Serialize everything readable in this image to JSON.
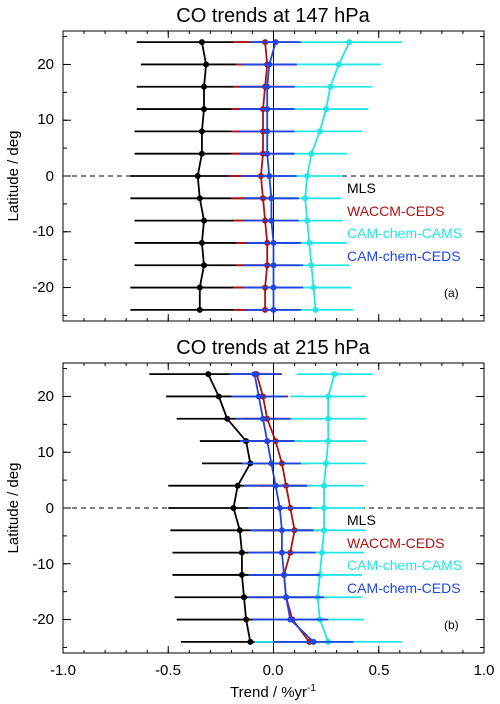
{
  "chart_data": [
    {
      "type": "errorbar-profile",
      "title": "CO trends at 147 hPa",
      "ylabel": "Latitude / deg",
      "xlabel": "",
      "xlim": [
        -1.0,
        1.0
      ],
      "ylim": [
        -26,
        26
      ],
      "yticks": [
        20,
        10,
        0,
        -10,
        -20
      ],
      "yticklabels": [
        "20",
        "10",
        "0",
        "-10",
        "-20"
      ],
      "xticks": [
        -1.0,
        -0.5,
        0.0,
        0.5,
        1.0
      ],
      "zero_line_y": 0,
      "panel_label": "(a)",
      "latitudes": [
        24,
        20,
        16,
        12,
        8,
        4,
        0,
        -4,
        -8,
        -12,
        -16,
        -20,
        -24
      ],
      "series": [
        {
          "name": "MLS",
          "color": "#000000",
          "values": [
            -0.34,
            -0.32,
            -0.33,
            -0.33,
            -0.34,
            -0.34,
            -0.36,
            -0.35,
            -0.33,
            -0.34,
            -0.33,
            -0.35,
            -0.35
          ],
          "errors": [
            0.31,
            0.31,
            0.32,
            0.32,
            0.32,
            0.32,
            0.32,
            0.33,
            0.33,
            0.32,
            0.33,
            0.33,
            0.33
          ]
        },
        {
          "name": "WACCM-CEDS",
          "color": "#b01010",
          "values": [
            -0.04,
            -0.03,
            -0.04,
            -0.05,
            -0.05,
            -0.05,
            -0.06,
            -0.05,
            -0.04,
            -0.03,
            -0.03,
            -0.04,
            -0.04
          ],
          "errors": [
            0.15,
            0.15,
            0.15,
            0.15,
            0.15,
            0.15,
            0.15,
            0.15,
            0.15,
            0.15,
            0.15,
            0.15,
            0.15
          ]
        },
        {
          "name": "CAM-chem-CAMS",
          "color": "#22e6e6",
          "values": [
            0.36,
            0.31,
            0.27,
            0.25,
            0.22,
            0.18,
            0.16,
            0.15,
            0.16,
            0.17,
            0.18,
            0.19,
            0.2
          ],
          "errors": [
            0.25,
            0.2,
            0.2,
            0.2,
            0.2,
            0.17,
            0.16,
            0.17,
            0.17,
            0.18,
            0.18,
            0.18,
            0.18
          ]
        },
        {
          "name": "CAM-chem-CEDS",
          "color": "#1e46e6",
          "values": [
            0.01,
            -0.02,
            -0.03,
            -0.03,
            -0.03,
            -0.03,
            -0.02,
            -0.01,
            -0.01,
            0.0,
            0.0,
            0.0,
            0.0
          ],
          "errors": [
            0.12,
            0.13,
            0.13,
            0.13,
            0.13,
            0.13,
            0.13,
            0.13,
            0.13,
            0.13,
            0.14,
            0.14,
            0.13
          ]
        }
      ]
    },
    {
      "type": "errorbar-profile",
      "title": "CO trends at 215 hPa",
      "ylabel": "Latitude / deg",
      "xlabel": "Trend / %yr",
      "xlabel_superscript": "-1",
      "xlim": [
        -1.0,
        1.0
      ],
      "ylim": [
        -26,
        26
      ],
      "yticks": [
        20,
        10,
        0,
        -10,
        -20
      ],
      "yticklabels": [
        "20",
        "10",
        "0",
        "-10",
        "-20"
      ],
      "xticks": [
        -1.0,
        -0.5,
        0.0,
        0.5,
        1.0
      ],
      "xticklabels": [
        "-1.0",
        "-0.5",
        "0.0",
        "0.5",
        "1.0"
      ],
      "zero_line_y": 0,
      "panel_label": "(b)",
      "latitudes": [
        24,
        20,
        16,
        12,
        8,
        4,
        0,
        -4,
        -8,
        -12,
        -16,
        -20,
        -24
      ],
      "series": [
        {
          "name": "MLS",
          "color": "#000000",
          "values": [
            -0.31,
            -0.26,
            -0.22,
            -0.13,
            -0.11,
            -0.17,
            -0.19,
            -0.16,
            -0.15,
            -0.15,
            -0.14,
            -0.13,
            -0.11
          ],
          "errors": [
            0.28,
            0.25,
            0.24,
            0.22,
            0.23,
            0.33,
            0.31,
            0.33,
            0.33,
            0.33,
            0.33,
            0.33,
            0.33
          ]
        },
        {
          "name": "WACCM-CEDS",
          "color": "#b01010",
          "values": [
            -0.08,
            -0.05,
            -0.03,
            0.01,
            0.04,
            0.06,
            0.08,
            0.1,
            0.08,
            0.05,
            0.06,
            0.09,
            0.17
          ],
          "errors": [
            0.12,
            0.12,
            0.12,
            0.12,
            0.13,
            0.13,
            0.13,
            0.13,
            0.14,
            0.14,
            0.14,
            0.14,
            0.16
          ]
        },
        {
          "name": "CAM-chem-CAMS",
          "color": "#22e6e6",
          "values": [
            0.29,
            0.26,
            0.26,
            0.26,
            0.25,
            0.24,
            0.24,
            0.24,
            0.23,
            0.22,
            0.21,
            0.22,
            0.26
          ],
          "errors": [
            0.18,
            0.18,
            0.18,
            0.18,
            0.19,
            0.19,
            0.19,
            0.2,
            0.2,
            0.2,
            0.21,
            0.21,
            0.35
          ]
        },
        {
          "name": "CAM-chem-CEDS",
          "color": "#1e46e6",
          "values": [
            -0.09,
            -0.07,
            -0.05,
            -0.03,
            -0.01,
            0.01,
            0.03,
            0.04,
            0.04,
            0.05,
            0.06,
            0.08,
            0.19
          ],
          "errors": [
            0.12,
            0.13,
            0.13,
            0.13,
            0.14,
            0.15,
            0.15,
            0.15,
            0.16,
            0.17,
            0.18,
            0.18,
            0.19
          ]
        }
      ]
    }
  ]
}
